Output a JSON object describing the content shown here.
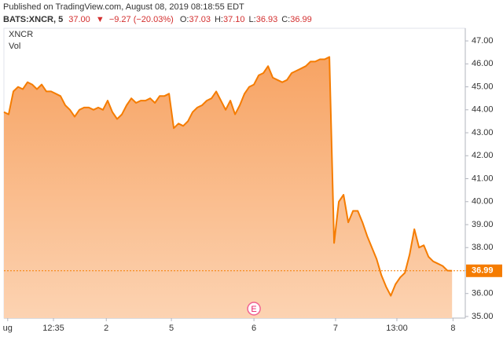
{
  "header": {
    "published": "Published on TradingView.com, August 08, 2019 08:18:55 EDT",
    "symbol": "BATS:XNCR, 5",
    "last": "37.00",
    "change": "−9.27 (−20.03%)",
    "ohlc": [
      {
        "label": "O:",
        "value": "37.03"
      },
      {
        "label": "H:",
        "value": "37.10"
      },
      {
        "label": "L:",
        "value": "36.93"
      },
      {
        "label": "C:",
        "value": "36.99"
      }
    ]
  },
  "chart_data": {
    "type": "area",
    "volume_label": "Vol",
    "x": [
      0,
      1,
      2,
      3,
      4,
      5,
      6,
      7,
      8,
      9,
      10,
      11,
      12,
      13,
      14,
      15,
      16,
      17,
      18,
      19,
      20,
      21,
      22,
      23,
      24,
      25,
      26,
      27,
      28,
      29,
      30,
      31,
      32,
      33,
      34,
      35,
      36,
      37,
      38,
      39,
      40,
      41,
      42,
      43,
      44,
      45,
      46,
      47,
      48,
      49,
      50,
      51,
      52,
      53,
      54,
      55,
      56,
      57,
      58,
      59,
      60,
      61,
      62,
      63,
      64,
      65,
      66,
      67,
      68,
      69,
      70,
      71,
      72,
      73,
      74,
      75,
      76,
      77,
      78,
      79,
      80,
      81,
      82,
      83,
      84,
      85,
      86,
      87,
      88,
      89,
      90,
      91,
      92,
      93,
      94,
      95
    ],
    "series": [
      {
        "name": "XNCR",
        "color": "#f57c00",
        "values": [
          43.9,
          43.8,
          44.8,
          45.0,
          44.9,
          45.2,
          45.1,
          44.9,
          45.1,
          44.8,
          44.8,
          44.7,
          44.6,
          44.2,
          44.0,
          43.7,
          44.0,
          44.1,
          44.1,
          44.0,
          44.1,
          44.0,
          44.4,
          43.9,
          43.6,
          43.8,
          44.2,
          44.5,
          44.3,
          44.4,
          44.4,
          44.5,
          44.3,
          44.6,
          44.6,
          44.7,
          43.2,
          43.4,
          43.3,
          43.5,
          43.9,
          44.1,
          44.2,
          44.4,
          44.5,
          44.8,
          44.4,
          44.0,
          44.4,
          43.8,
          44.2,
          44.7,
          45.0,
          45.1,
          45.5,
          45.6,
          45.9,
          45.4,
          45.3,
          45.2,
          45.3,
          45.6,
          45.7,
          45.8,
          45.9,
          46.1,
          46.1,
          46.2,
          46.2,
          46.3,
          38.2,
          40.0,
          40.3,
          39.1,
          39.6,
          39.6,
          39.1,
          38.5,
          38.0,
          37.5,
          36.8,
          36.3,
          35.9,
          36.4,
          36.7,
          36.9,
          37.7,
          38.8,
          38.0,
          38.1,
          37.6,
          37.4,
          37.3,
          37.2,
          37.0,
          36.99
        ]
      }
    ],
    "xlim": [
      0,
      97.8
    ],
    "ylim": [
      34.93,
      47.55
    ],
    "xticks": [
      {
        "value": 0.8,
        "label": "ug"
      },
      {
        "value": 10.5,
        "label": "12:35"
      },
      {
        "value": 21.7,
        "label": "2"
      },
      {
        "value": 35.5,
        "label": "5"
      },
      {
        "value": 53,
        "label": "6"
      },
      {
        "value": 70.3,
        "label": "7"
      },
      {
        "value": 83.3,
        "label": "13:00"
      },
      {
        "value": 95.2,
        "label": "8"
      }
    ],
    "yticks": [
      {
        "value": 35,
        "label": "35.00"
      },
      {
        "value": 36,
        "label": "36.00"
      },
      {
        "value": 37,
        "label": "37.00"
      },
      {
        "value": 38,
        "label": "38.00"
      },
      {
        "value": 39,
        "label": "39.00"
      },
      {
        "value": 40,
        "label": "40.00"
      },
      {
        "value": 41,
        "label": "41.00"
      },
      {
        "value": 42,
        "label": "42.00"
      },
      {
        "value": 43,
        "label": "43.00"
      },
      {
        "value": 44,
        "label": "44.00"
      },
      {
        "value": 45,
        "label": "45.00"
      },
      {
        "value": 46,
        "label": "46.00"
      },
      {
        "value": 47,
        "label": "47.00"
      }
    ],
    "grid": false,
    "annotations": [
      {
        "text": "E",
        "x": 53
      }
    ]
  }
}
